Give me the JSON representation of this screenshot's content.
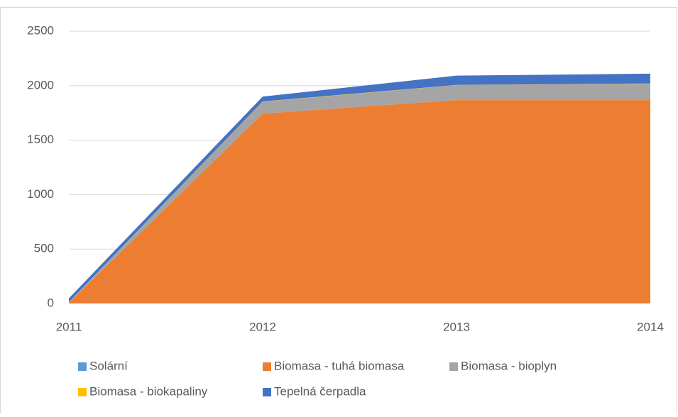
{
  "chart_data": {
    "type": "stacked_area",
    "categories": [
      "2011",
      "2012",
      "2013",
      "2014"
    ],
    "series": [
      {
        "name": "Solární",
        "color": "#5b9bd5",
        "values": [
          2,
          3,
          3,
          3
        ]
      },
      {
        "name": "Biomasa - tuhá biomasa",
        "color": "#ed7d31",
        "values": [
          5,
          1740,
          1865,
          1865
        ]
      },
      {
        "name": "Biomasa - bioplyn",
        "color": "#a5a5a5",
        "values": [
          5,
          110,
          137,
          150
        ]
      },
      {
        "name": "Biomasa - biokapaliny",
        "color": "#ffc000",
        "values": [
          1,
          2,
          2,
          2
        ]
      },
      {
        "name": "Tepelná čerpadla",
        "color": "#4472c4",
        "values": [
          35,
          45,
          85,
          90
        ]
      }
    ],
    "ylim": [
      0,
      2500
    ],
    "yticks": [
      0,
      500,
      1000,
      1500,
      2000,
      2500
    ],
    "grid": true,
    "legend": "bottom"
  }
}
